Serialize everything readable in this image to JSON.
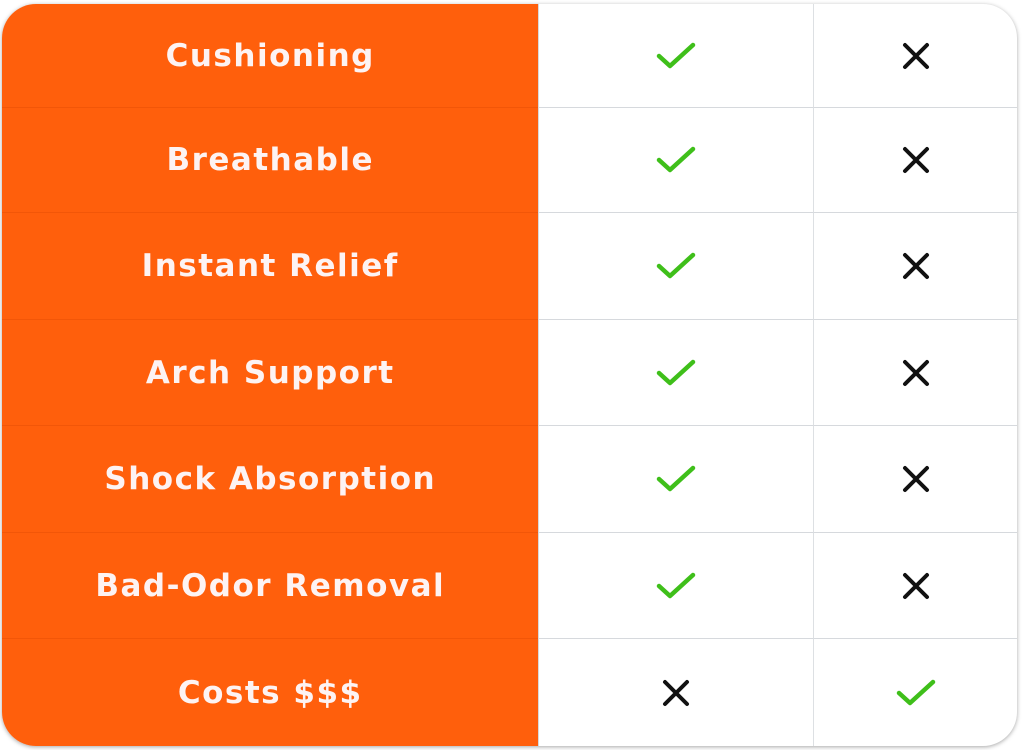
{
  "colors": {
    "feature_bg": "#ff5f0c",
    "check": "#3fbf1a",
    "cross": "#111111"
  },
  "rows": [
    {
      "feature": "Cushioning",
      "col1": "check-icon",
      "col2": "cross-icon"
    },
    {
      "feature": "Breathable",
      "col1": "check-icon",
      "col2": "cross-icon"
    },
    {
      "feature": "Instant Relief",
      "col1": "check-icon",
      "col2": "cross-icon"
    },
    {
      "feature": "Arch Support",
      "col1": "check-icon",
      "col2": "cross-icon"
    },
    {
      "feature": "Shock Absorption",
      "col1": "check-icon",
      "col2": "cross-icon"
    },
    {
      "feature": "Bad-Odor Removal",
      "col1": "check-icon",
      "col2": "cross-icon"
    },
    {
      "feature": "Costs $$$",
      "col1": "cross-icon",
      "col2": "check-icon"
    }
  ]
}
